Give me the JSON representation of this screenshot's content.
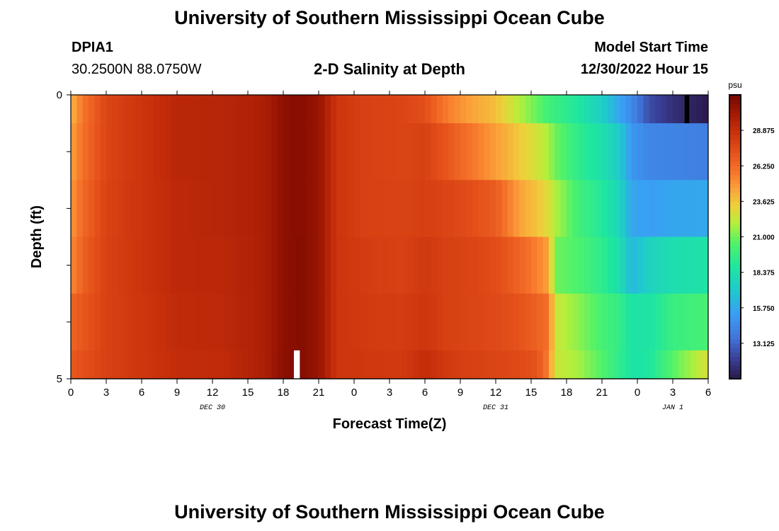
{
  "page": {
    "title_top": "University of Southern Mississippi Ocean Cube",
    "title_bottom": "University of Southern Mississippi Ocean Cube",
    "station_id": "DPIA1",
    "coordinates": "30.2500N  88.0750W",
    "plot_title": "2-D Salinity at Depth",
    "model_start_label": "Model Start Time",
    "model_start_value": "12/30/2022 Hour 15"
  },
  "chart_data": {
    "type": "heatmap",
    "title": "2-D Salinity at Depth",
    "xlabel": "Forecast Time(Z)",
    "ylabel": "Depth (ft)",
    "xlim": [
      0,
      54
    ],
    "ylim": [
      0,
      5
    ],
    "y_ticks": [
      "0",
      "5"
    ],
    "x_ticks": [
      {
        "h": 0,
        "label": "0"
      },
      {
        "h": 3,
        "label": "3"
      },
      {
        "h": 6,
        "label": "6"
      },
      {
        "h": 9,
        "label": "9"
      },
      {
        "h": 12,
        "label": "12"
      },
      {
        "h": 15,
        "label": "15"
      },
      {
        "h": 18,
        "label": "18"
      },
      {
        "h": 21,
        "label": "21"
      },
      {
        "h": 24,
        "label": "0"
      },
      {
        "h": 27,
        "label": "3"
      },
      {
        "h": 30,
        "label": "6"
      },
      {
        "h": 33,
        "label": "9"
      },
      {
        "h": 36,
        "label": "12"
      },
      {
        "h": 39,
        "label": "15"
      },
      {
        "h": 42,
        "label": "18"
      },
      {
        "h": 45,
        "label": "21"
      },
      {
        "h": 48,
        "label": "0"
      },
      {
        "h": 51,
        "label": "3"
      },
      {
        "h": 54,
        "label": "6"
      }
    ],
    "date_labels": [
      {
        "h": 12,
        "label": "DEC 30"
      },
      {
        "h": 36,
        "label": "DEC 31"
      },
      {
        "h": 51,
        "label": "JAN 1"
      }
    ],
    "layers": [
      {
        "depth_top": 0.0,
        "depth_bottom": 0.5
      },
      {
        "depth_top": 0.5,
        "depth_bottom": 1.5
      },
      {
        "depth_top": 1.5,
        "depth_bottom": 2.5
      },
      {
        "depth_top": 2.5,
        "depth_bottom": 3.5
      },
      {
        "depth_top": 3.5,
        "depth_bottom": 4.5
      },
      {
        "depth_top": 4.5,
        "depth_bottom": 5.0
      }
    ],
    "salinity_profile": [
      {
        "h": 0,
        "v": [
          24.0,
          24.5,
          24.8,
          25.2,
          26.5,
          27.0
        ]
      },
      {
        "h": 1,
        "v": [
          25.8,
          26.0,
          26.3,
          26.6,
          27.0,
          27.3
        ]
      },
      {
        "h": 3,
        "v": [
          27.8,
          27.8,
          27.9,
          28.0,
          28.0,
          28.0
        ]
      },
      {
        "h": 6,
        "v": [
          28.6,
          28.6,
          28.6,
          28.6,
          28.5,
          28.5
        ]
      },
      {
        "h": 9,
        "v": [
          29.3,
          29.3,
          29.2,
          29.2,
          29.1,
          29.0
        ]
      },
      {
        "h": 13,
        "v": [
          29.4,
          29.4,
          29.4,
          29.3,
          29.2,
          29.1
        ]
      },
      {
        "h": 16.5,
        "v": [
          29.8,
          29.8,
          29.8,
          29.8,
          29.8,
          29.8
        ]
      },
      {
        "h": 18,
        "v": [
          30.8,
          30.8,
          30.8,
          30.8,
          30.8,
          30.9
        ]
      },
      {
        "h": 19.5,
        "v": [
          31.0,
          31.0,
          31.0,
          31.1,
          31.1,
          31.1
        ]
      },
      {
        "h": 21,
        "v": [
          30.5,
          30.5,
          30.5,
          30.5,
          30.5,
          30.5
        ]
      },
      {
        "h": 22.5,
        "v": [
          28.6,
          28.6,
          28.6,
          28.6,
          28.6,
          28.6
        ]
      },
      {
        "h": 25,
        "v": [
          28.0,
          28.0,
          28.0,
          28.2,
          28.3,
          28.4
        ]
      },
      {
        "h": 28,
        "v": [
          27.8,
          27.8,
          27.9,
          28.0,
          28.2,
          28.3
        ]
      },
      {
        "h": 30,
        "v": [
          27.4,
          28.0,
          28.1,
          28.4,
          28.5,
          29.0
        ]
      },
      {
        "h": 32,
        "v": [
          25.5,
          27.0,
          27.8,
          28.0,
          28.0,
          28.3
        ]
      },
      {
        "h": 34,
        "v": [
          24.5,
          25.8,
          27.4,
          27.8,
          27.8,
          28.0
        ]
      },
      {
        "h": 36,
        "v": [
          23.8,
          24.7,
          26.8,
          27.5,
          27.6,
          27.8
        ]
      },
      {
        "h": 38,
        "v": [
          22.0,
          23.5,
          24.6,
          26.5,
          27.2,
          27.6
        ]
      },
      {
        "h": 39.5,
        "v": [
          20.8,
          22.6,
          23.6,
          25.5,
          26.6,
          27.2
        ]
      },
      {
        "h": 40.5,
        "v": [
          20.0,
          21.8,
          22.8,
          24.5,
          26.0,
          25.5
        ]
      },
      {
        "h": 41,
        "v": [
          19.8,
          21.0,
          22.0,
          21.0,
          22.5,
          22.5
        ]
      },
      {
        "h": 43,
        "v": [
          18.8,
          19.4,
          20.0,
          20.4,
          21.4,
          21.8
        ]
      },
      {
        "h": 45,
        "v": [
          17.4,
          18.4,
          19.0,
          19.4,
          20.2,
          20.5
        ]
      },
      {
        "h": 46.5,
        "v": [
          15.6,
          17.2,
          17.8,
          18.3,
          19.6,
          19.4
        ]
      },
      {
        "h": 47.5,
        "v": [
          14.4,
          15.0,
          15.6,
          16.3,
          18.6,
          18.6
        ]
      },
      {
        "h": 49,
        "v": [
          12.4,
          14.3,
          15.3,
          17.6,
          18.6,
          18.8
        ]
      },
      {
        "h": 51,
        "v": [
          11.4,
          14.2,
          15.6,
          18.2,
          19.8,
          20.6
        ]
      },
      {
        "h": 54,
        "v": [
          10.6,
          14.0,
          15.7,
          18.6,
          20.2,
          22.8
        ]
      }
    ],
    "colorbar": {
      "unit": "psu",
      "min": 10.5,
      "max": 31.5,
      "tick_labels": [
        "28.875",
        "26.250",
        "23.625",
        "21.000",
        "18.375",
        "15.750",
        "13.125"
      ],
      "tick_values": [
        28.875,
        26.25,
        23.625,
        21.0,
        18.375,
        15.75,
        13.125
      ]
    },
    "colors": {
      "stops": [
        [
          10.5,
          "#2a1848"
        ],
        [
          12.0,
          "#3a3f96"
        ],
        [
          13.5,
          "#4273d8"
        ],
        [
          15.2,
          "#3b9cf6"
        ],
        [
          17.0,
          "#1fc8cf"
        ],
        [
          18.8,
          "#1ee6a0"
        ],
        [
          20.5,
          "#4ff26a"
        ],
        [
          22.0,
          "#b5ef3b"
        ],
        [
          23.3,
          "#eed13a"
        ],
        [
          24.5,
          "#fba43a"
        ],
        [
          25.8,
          "#f6752b"
        ],
        [
          27.3,
          "#e4501a"
        ],
        [
          28.8,
          "#c8300b"
        ],
        [
          30.2,
          "#a01804"
        ],
        [
          31.5,
          "#780800"
        ]
      ],
      "no_data": "#ffffff"
    },
    "missing_cells": [
      {
        "h_start": 18.9,
        "h_end": 19.4,
        "layer": 5,
        "color": "#ffffff"
      },
      {
        "h_start": 52.0,
        "h_end": 52.4,
        "layer": 0,
        "color": "#000000"
      }
    ]
  }
}
